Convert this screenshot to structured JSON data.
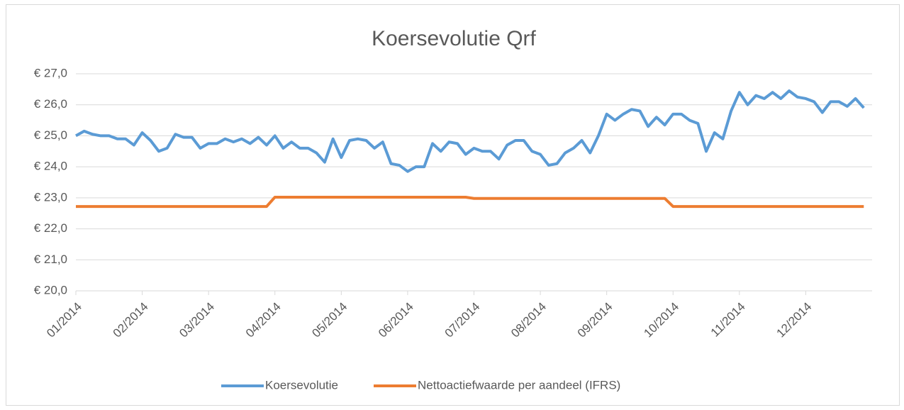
{
  "chart_data": {
    "type": "line",
    "title": "Koersevolutie  Qrf",
    "categories": [
      "01/2014",
      null,
      null,
      null,
      null,
      null,
      null,
      null,
      "02/2014",
      null,
      null,
      null,
      null,
      null,
      null,
      null,
      "03/2014",
      null,
      null,
      null,
      null,
      null,
      null,
      null,
      "04/2014",
      null,
      null,
      null,
      null,
      null,
      null,
      null,
      "05/2014",
      null,
      null,
      null,
      null,
      null,
      null,
      null,
      "06/2014",
      null,
      null,
      null,
      null,
      null,
      null,
      null,
      "07/2014",
      null,
      null,
      null,
      null,
      null,
      null,
      null,
      "08/2014",
      null,
      null,
      null,
      null,
      null,
      null,
      null,
      "09/2014",
      null,
      null,
      null,
      null,
      null,
      null,
      null,
      "10/2014",
      null,
      null,
      null,
      null,
      null,
      null,
      null,
      "11/2014",
      null,
      null,
      null,
      null,
      null,
      null,
      null,
      "12/2014",
      null,
      null,
      null,
      null,
      null,
      null,
      null
    ],
    "series": [
      {
        "name": "Koersevolutie",
        "color": "#5b9bd5",
        "values": [
          25.0,
          25.15,
          25.05,
          25.0,
          25.0,
          24.9,
          24.9,
          24.7,
          25.1,
          24.85,
          24.5,
          24.6,
          25.05,
          24.95,
          24.95,
          24.6,
          24.75,
          24.75,
          24.9,
          24.8,
          24.9,
          24.75,
          24.95,
          24.7,
          25.0,
          24.6,
          24.8,
          24.6,
          24.6,
          24.45,
          24.15,
          24.9,
          24.3,
          24.85,
          24.9,
          24.85,
          24.6,
          24.8,
          24.1,
          24.05,
          23.85,
          24.0,
          24.0,
          24.75,
          24.5,
          24.8,
          24.75,
          24.4,
          24.6,
          24.5,
          24.5,
          24.25,
          24.7,
          24.85,
          24.85,
          24.5,
          24.4,
          24.05,
          24.1,
          24.45,
          24.6,
          24.85,
          24.45,
          25.0,
          25.7,
          25.5,
          25.7,
          25.85,
          25.8,
          25.3,
          25.6,
          25.35,
          25.7,
          25.7,
          25.5,
          25.4,
          24.5,
          25.1,
          24.9,
          25.8,
          26.4,
          26.0,
          26.3,
          26.2,
          26.4,
          26.2,
          26.45,
          26.25,
          26.2,
          26.1,
          25.75,
          26.1,
          26.1,
          25.95,
          26.2,
          25.9
        ]
      },
      {
        "name": "Nettoactiefwaarde per aandeel (IFRS)",
        "color": "#ed7d31",
        "values": [
          22.72,
          22.72,
          22.72,
          22.72,
          22.72,
          22.72,
          22.72,
          22.72,
          22.72,
          22.72,
          22.72,
          22.72,
          22.72,
          22.72,
          22.72,
          22.72,
          22.72,
          22.72,
          22.72,
          22.72,
          22.72,
          22.72,
          22.72,
          22.72,
          23.02,
          23.02,
          23.02,
          23.02,
          23.02,
          23.02,
          23.02,
          23.02,
          23.02,
          23.02,
          23.02,
          23.02,
          23.02,
          23.02,
          23.02,
          23.02,
          23.02,
          23.02,
          23.02,
          23.02,
          23.02,
          23.02,
          23.02,
          23.02,
          22.98,
          22.98,
          22.98,
          22.98,
          22.98,
          22.98,
          22.98,
          22.98,
          22.98,
          22.98,
          22.98,
          22.98,
          22.98,
          22.98,
          22.98,
          22.98,
          22.98,
          22.98,
          22.98,
          22.98,
          22.98,
          22.98,
          22.98,
          22.98,
          22.72,
          22.72,
          22.72,
          22.72,
          22.72,
          22.72,
          22.72,
          22.72,
          22.72,
          22.72,
          22.72,
          22.72,
          22.72,
          22.72,
          22.72,
          22.72,
          22.72,
          22.72,
          22.72,
          22.72,
          22.72,
          22.72,
          22.72,
          22.72
        ]
      }
    ],
    "ylim": [
      20,
      27
    ],
    "yticks": [
      {
        "value": 20,
        "label": "€ 20,0"
      },
      {
        "value": 21,
        "label": "€ 21,0"
      },
      {
        "value": 22,
        "label": "€ 22,0"
      },
      {
        "value": 23,
        "label": "€ 23,0"
      },
      {
        "value": 24,
        "label": "€ 24,0"
      },
      {
        "value": 25,
        "label": "€ 25,0"
      },
      {
        "value": 26,
        "label": "€ 26,0"
      },
      {
        "value": 27,
        "label": "€ 27,0"
      }
    ],
    "grid": true,
    "legend": "bottom"
  }
}
